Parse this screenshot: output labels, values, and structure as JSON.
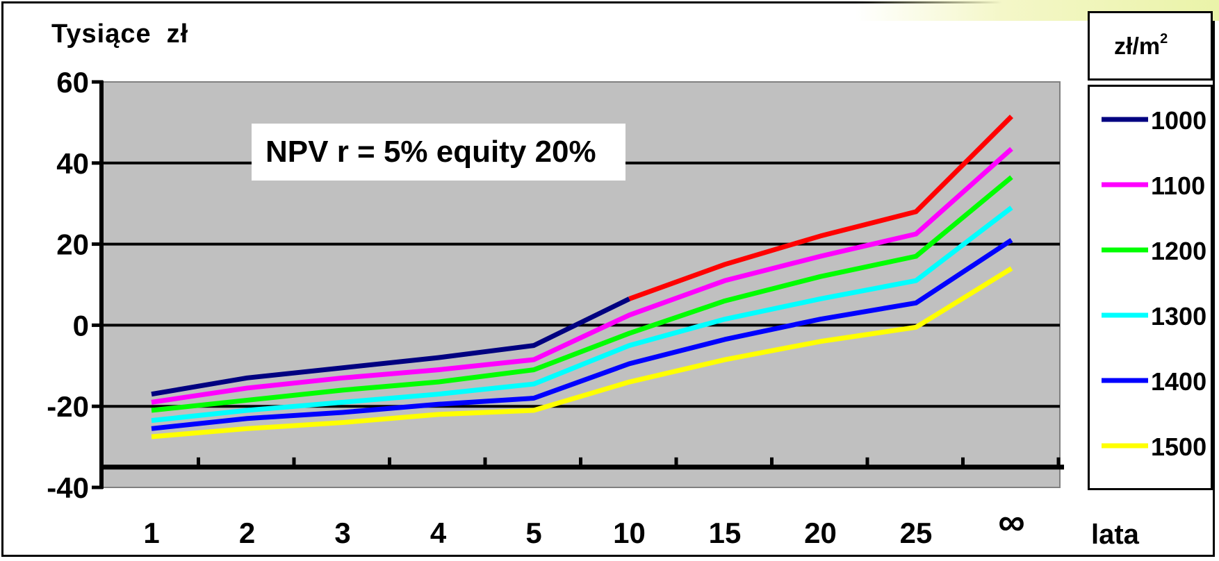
{
  "chart_data": {
    "type": "line",
    "ylabel": "Tysiące zł",
    "ylabel_parts": [
      "Tysiące",
      "zł"
    ],
    "xlabel": "lata",
    "annotation": "NPV r = 5% equity 20%",
    "legend_title": "zł/m",
    "legend_title_sup": "2",
    "categories": [
      "1",
      "2",
      "3",
      "4",
      "5",
      "10",
      "15",
      "20",
      "25",
      "∞"
    ],
    "ylim": [
      -40,
      60
    ],
    "yticks": [
      "60",
      "40",
      "20",
      "0",
      "-20",
      "-40"
    ],
    "grid": true,
    "legend_position": "right",
    "plot_background": "#c0c0c0",
    "series": [
      {
        "name": "1000",
        "color": "#000080",
        "color_above_zero": "#ff0000",
        "values": [
          -17,
          -13,
          -10.5,
          -8,
          -5,
          6.5,
          15,
          22,
          28,
          51.5
        ]
      },
      {
        "name": "1100",
        "color": "#ff00ff",
        "values": [
          -19,
          -15.5,
          -13,
          -11,
          -8.5,
          2.5,
          11,
          17,
          22.5,
          43.5
        ]
      },
      {
        "name": "1200",
        "color": "#00ff00",
        "values": [
          -21,
          -18.5,
          -16,
          -14,
          -11,
          -2,
          6,
          12,
          17,
          36.5
        ]
      },
      {
        "name": "1300",
        "color": "#00ffff",
        "values": [
          -23.5,
          -21,
          -19,
          -17,
          -14.5,
          -5,
          1.5,
          6.5,
          11,
          29
        ]
      },
      {
        "name": "1400",
        "color": "#0000ff",
        "values": [
          -25.5,
          -23,
          -21.5,
          -19.5,
          -18,
          -9.5,
          -3.5,
          1.5,
          5.5,
          21
        ]
      },
      {
        "name": "1500",
        "color": "#ffff00",
        "values": [
          -27.5,
          -25.5,
          -24,
          -22,
          -21,
          -14,
          -8.5,
          -4,
          -0.5,
          14
        ]
      }
    ]
  }
}
